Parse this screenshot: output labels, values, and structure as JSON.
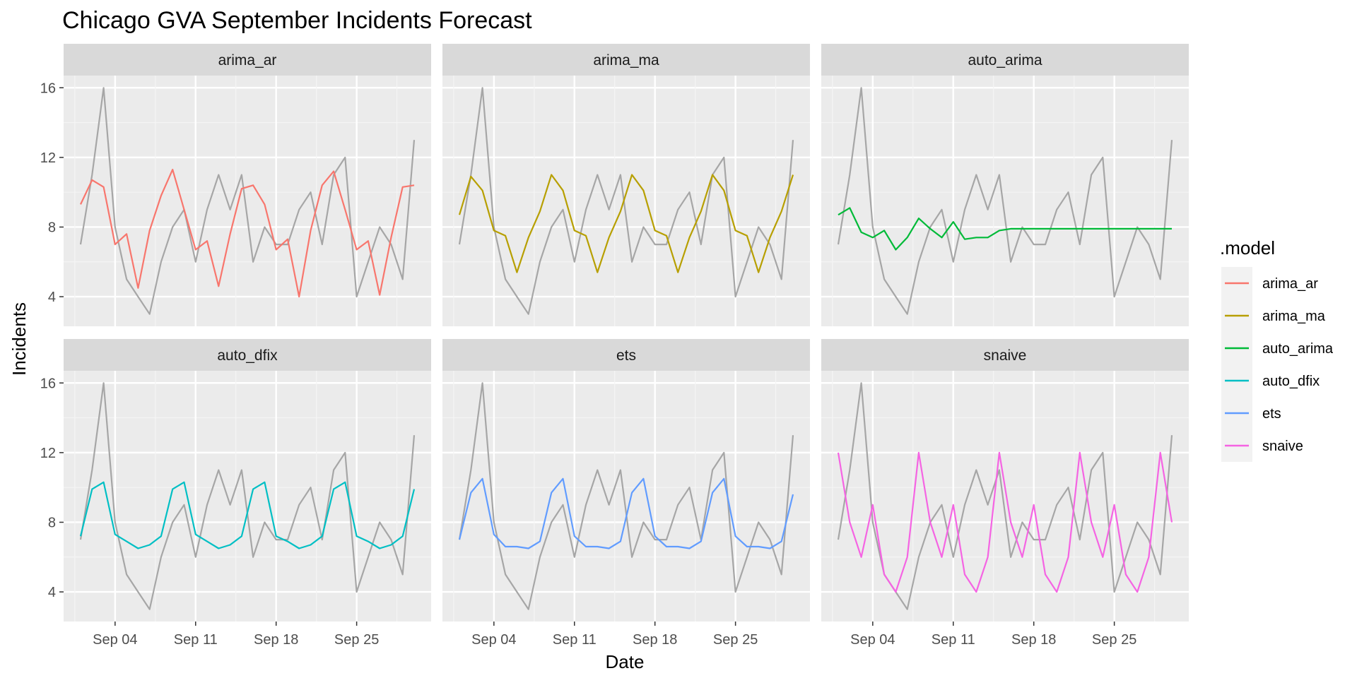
{
  "chart_data": {
    "type": "line",
    "title": "Chicago GVA September Incidents Forecast",
    "xlabel": "Date",
    "ylabel": "Incidents",
    "legend_title": ".model",
    "legend_position": "right",
    "grid": true,
    "facet_layout": "2x3",
    "facets": [
      "arima_ar",
      "arima_ma",
      "auto_arima",
      "auto_dfix",
      "ets",
      "snaive"
    ],
    "x": [
      "Sep 01",
      "Sep 02",
      "Sep 03",
      "Sep 04",
      "Sep 05",
      "Sep 06",
      "Sep 07",
      "Sep 08",
      "Sep 09",
      "Sep 10",
      "Sep 11",
      "Sep 12",
      "Sep 13",
      "Sep 14",
      "Sep 15",
      "Sep 16",
      "Sep 17",
      "Sep 18",
      "Sep 19",
      "Sep 20",
      "Sep 21",
      "Sep 22",
      "Sep 23",
      "Sep 24",
      "Sep 25",
      "Sep 26",
      "Sep 27",
      "Sep 28",
      "Sep 29",
      "Sep 30"
    ],
    "x_ticks": [
      "Sep 04",
      "Sep 11",
      "Sep 18",
      "Sep 25"
    ],
    "y_ticks": [
      4,
      8,
      12,
      16
    ],
    "ylim": [
      2.3,
      16.7
    ],
    "actual": {
      "color": "#a6a6a6",
      "values": [
        7,
        11,
        16,
        8,
        5,
        4,
        3,
        6,
        8,
        9,
        6,
        9,
        11,
        9,
        11,
        6,
        8,
        7,
        7,
        9,
        10,
        7,
        11,
        12,
        4,
        6,
        8,
        7,
        5,
        13
      ]
    },
    "series": [
      {
        "name": "arima_ar",
        "color": "#f8766d",
        "values": [
          9.3,
          10.7,
          10.3,
          7.0,
          7.6,
          4.5,
          7.8,
          9.8,
          11.3,
          9.0,
          6.7,
          7.2,
          4.6,
          7.6,
          10.2,
          10.4,
          9.3,
          6.7,
          7.3,
          4.0,
          7.8,
          10.4,
          11.2,
          9.0,
          6.7,
          7.2,
          4.1,
          7.4,
          10.3,
          10.4
        ]
      },
      {
        "name": "arima_ma",
        "color": "#b79f00",
        "values": [
          8.7,
          10.9,
          10.1,
          7.8,
          7.5,
          5.4,
          7.4,
          8.9,
          11.0,
          10.1,
          7.8,
          7.5,
          5.4,
          7.4,
          8.9,
          11.0,
          10.1,
          7.8,
          7.5,
          5.4,
          7.4,
          8.9,
          11.0,
          10.1,
          7.8,
          7.5,
          5.4,
          7.4,
          8.9,
          11.0
        ]
      },
      {
        "name": "auto_arima",
        "color": "#00ba38",
        "values": [
          8.7,
          9.1,
          7.7,
          7.4,
          7.8,
          6.7,
          7.4,
          8.5,
          7.9,
          7.4,
          8.3,
          7.3,
          7.4,
          7.4,
          7.8,
          7.9,
          7.9,
          7.9,
          7.9,
          7.9,
          7.9,
          7.9,
          7.9,
          7.9,
          7.9,
          7.9,
          7.9,
          7.9,
          7.9,
          7.9
        ]
      },
      {
        "name": "auto_dfix",
        "color": "#00bfc4",
        "values": [
          7.2,
          9.9,
          10.3,
          7.3,
          6.9,
          6.5,
          6.7,
          7.2,
          9.9,
          10.3,
          7.3,
          6.9,
          6.5,
          6.7,
          7.2,
          9.9,
          10.3,
          7.2,
          6.9,
          6.5,
          6.7,
          7.2,
          9.9,
          10.3,
          7.2,
          6.9,
          6.5,
          6.7,
          7.2,
          9.9
        ]
      },
      {
        "name": "ets",
        "color": "#619cff",
        "values": [
          7.0,
          9.7,
          10.5,
          7.3,
          6.6,
          6.6,
          6.5,
          6.9,
          9.7,
          10.5,
          7.2,
          6.6,
          6.6,
          6.5,
          6.9,
          9.7,
          10.5,
          7.2,
          6.6,
          6.6,
          6.5,
          6.9,
          9.7,
          10.5,
          7.2,
          6.6,
          6.6,
          6.5,
          6.9,
          9.6
        ]
      },
      {
        "name": "snaive",
        "color": "#f564e3",
        "values": [
          12,
          8,
          6,
          9,
          5,
          4,
          6,
          12,
          8,
          6,
          9,
          5,
          4,
          6,
          12,
          8,
          6,
          9,
          5,
          4,
          6,
          12,
          8,
          6,
          9,
          5,
          4,
          6,
          12,
          8
        ]
      }
    ]
  }
}
